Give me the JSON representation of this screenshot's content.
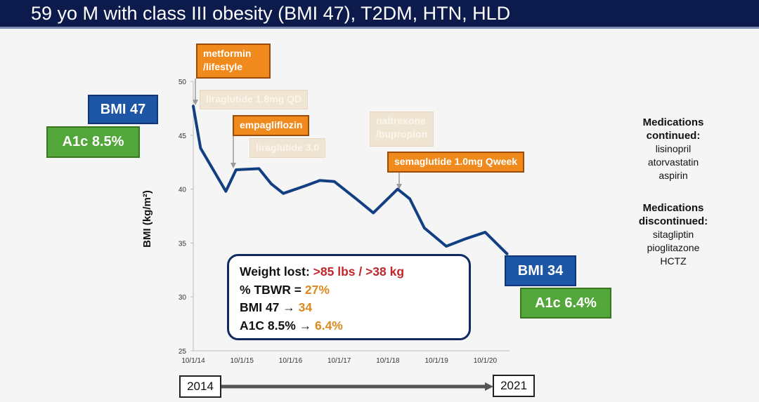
{
  "header": {
    "title": "59 yo M with class III obesity (BMI 47), T2DM, HTN, HLD"
  },
  "colors": {
    "line": "#123e82",
    "orange": "#f08a1c",
    "blue": "#1e56a6",
    "green": "#53a63a",
    "header": "#0c1a4c"
  },
  "badges": {
    "bmi_start": "BMI 47",
    "a1c_start": "A1c 8.5%",
    "bmi_end": "BMI 34",
    "a1c_end": "A1c 6.4%"
  },
  "annotations": {
    "metformin_line1": "metformin",
    "metformin_line2": "/lifestyle",
    "liraglutide_18": "liraglutide 1.8mg QD",
    "empagliflozin": "empagliflozin",
    "liraglutide_30": "liraglutide 3.0",
    "naltrexone_line1": "naltrexone",
    "naltrexone_line2": "/bupropion",
    "semaglutide": "semaglutide 1.0mg Qweek"
  },
  "summary": {
    "weight_label": "Weight lost: ",
    "weight_value": ">85 lbs / >38 kg",
    "tbwr_label": "% TBWR = ",
    "tbwr_value": "27%",
    "bmi_label": "BMI 47 → ",
    "bmi_value": "34",
    "a1c_label": "A1C 8.5% → ",
    "a1c_value": "6.4%"
  },
  "medications": {
    "continued_heading_1": "Medications",
    "continued_heading_2": "continued:",
    "continued": [
      "lisinopril",
      "atorvastatin",
      "aspirin"
    ],
    "discontinued_heading_1": "Medications",
    "discontinued_heading_2": "discontinued:",
    "discontinued": [
      "sitagliptin",
      "pioglitazone",
      "HCTZ"
    ]
  },
  "timeline": {
    "start": "2014",
    "end": "2021"
  },
  "chart_data": {
    "type": "line",
    "title": "",
    "xlabel": "",
    "ylabel": "BMI (kg/m²)",
    "ylim": [
      25,
      50
    ],
    "yticks": [
      25,
      30,
      35,
      40,
      45,
      50
    ],
    "xlim": [
      0,
      6.5
    ],
    "xticks": [
      0,
      1,
      2,
      3,
      4,
      5,
      6
    ],
    "xticklabels": [
      "10/1/14",
      "10/1/15",
      "10/1/16",
      "10/1/17",
      "10/1/18",
      "10/1/19",
      "10/1/20"
    ],
    "series": [
      {
        "name": "BMI",
        "x": [
          0.0,
          0.15,
          0.67,
          0.88,
          1.35,
          1.6,
          1.85,
          2.3,
          2.6,
          2.9,
          3.35,
          3.7,
          4.2,
          4.45,
          4.75,
          5.2,
          5.6,
          6.0,
          6.45
        ],
        "y": [
          47.7,
          43.8,
          39.8,
          41.8,
          41.9,
          40.5,
          39.6,
          40.3,
          40.8,
          40.7,
          39.1,
          37.8,
          40.0,
          39.1,
          36.4,
          34.7,
          35.4,
          36.0,
          34.0
        ]
      }
    ]
  }
}
